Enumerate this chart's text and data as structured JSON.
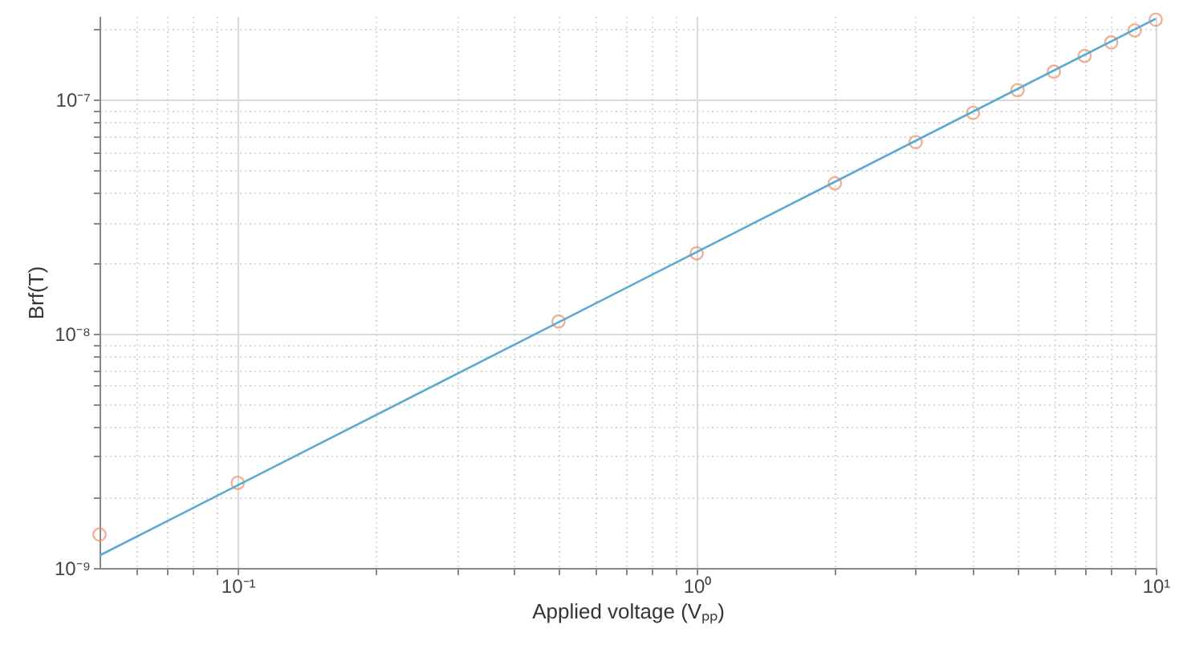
{
  "chart_data": {
    "type": "scatter",
    "xlabel": "Applied voltage (Vₚₚ)",
    "ylabel": "Brf(T)",
    "log": "xy",
    "grid": true,
    "xlim": [
      0.05,
      10
    ],
    "ylim": [
      1e-09,
      2.28e-07
    ],
    "xticks": [
      {
        "value": 0.06,
        "label": null
      },
      {
        "value": 0.07,
        "label": null
      },
      {
        "value": 0.08,
        "label": null
      },
      {
        "value": 0.09,
        "label": null
      },
      {
        "value": 0.1,
        "label": "10⁻¹"
      },
      {
        "value": 0.2,
        "label": null
      },
      {
        "value": 0.3,
        "label": null
      },
      {
        "value": 0.4,
        "label": null
      },
      {
        "value": 0.5,
        "label": null
      },
      {
        "value": 0.6,
        "label": null
      },
      {
        "value": 0.7,
        "label": null
      },
      {
        "value": 0.8,
        "label": null
      },
      {
        "value": 0.9,
        "label": null
      },
      {
        "value": 1,
        "label": "10⁰"
      },
      {
        "value": 2,
        "label": null
      },
      {
        "value": 3,
        "label": null
      },
      {
        "value": 4,
        "label": null
      },
      {
        "value": 5,
        "label": null
      },
      {
        "value": 6,
        "label": null
      },
      {
        "value": 7,
        "label": null
      },
      {
        "value": 8,
        "label": null
      },
      {
        "value": 9,
        "label": null
      },
      {
        "value": 10,
        "label": "10¹"
      }
    ],
    "yticks": [
      {
        "value": 1e-09,
        "label": "10⁻⁹"
      },
      {
        "value": 2e-09,
        "label": null
      },
      {
        "value": 3e-09,
        "label": null
      },
      {
        "value": 4e-09,
        "label": null
      },
      {
        "value": 5e-09,
        "label": null
      },
      {
        "value": 6e-09,
        "label": null
      },
      {
        "value": 7e-09,
        "label": null
      },
      {
        "value": 8e-09,
        "label": null
      },
      {
        "value": 9e-09,
        "label": null
      },
      {
        "value": 1e-08,
        "label": "10⁻⁸"
      },
      {
        "value": 2e-08,
        "label": null
      },
      {
        "value": 3e-08,
        "label": null
      },
      {
        "value": 4e-08,
        "label": null
      },
      {
        "value": 5e-08,
        "label": null
      },
      {
        "value": 6e-08,
        "label": null
      },
      {
        "value": 7e-08,
        "label": null
      },
      {
        "value": 8e-08,
        "label": null
      },
      {
        "value": 9e-08,
        "label": null
      },
      {
        "value": 1e-07,
        "label": "10⁻⁷"
      },
      {
        "value": 2e-07,
        "label": null
      }
    ],
    "series": [
      {
        "marker": "circle",
        "color": "#e8916b",
        "x": [
          0.05,
          0.1,
          0.5,
          1,
          2,
          3,
          4,
          5,
          6,
          7,
          8,
          9,
          10
        ],
        "values": [
          1.39e-09,
          2.31e-09,
          1.13e-08,
          2.21e-08,
          4.4e-08,
          6.6e-08,
          8.8e-08,
          1.1e-07,
          1.32e-07,
          1.54e-07,
          1.76e-07,
          1.98e-07,
          2.2e-07
        ]
      },
      {
        "type": "line",
        "marker": "none",
        "color": "#5aa8d4",
        "x": [
          0.05,
          10
        ],
        "values": [
          1.13e-09,
          2.22e-07
        ]
      }
    ]
  }
}
